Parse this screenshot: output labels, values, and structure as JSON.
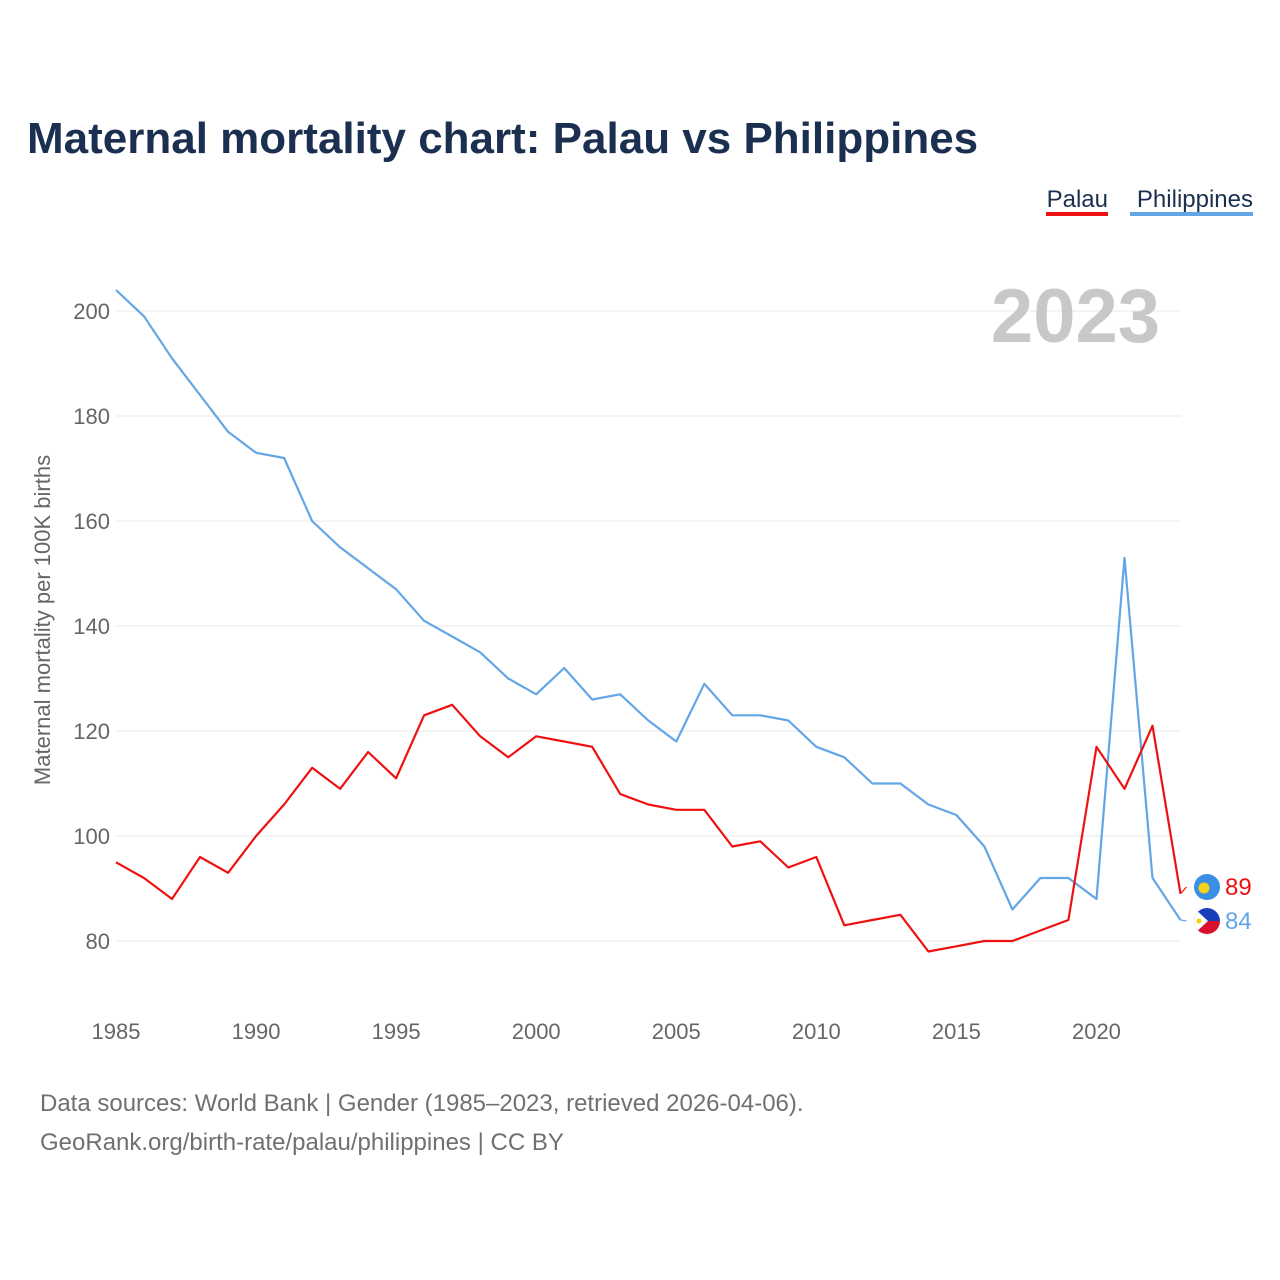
{
  "chart_data": {
    "type": "line",
    "title": "Maternal mortality chart: Palau vs Philippines",
    "ylabel": "Maternal mortality per 100K births",
    "xlabel": "",
    "year_label": "2023",
    "xlim": [
      1985,
      2023
    ],
    "ylim": [
      68,
      208
    ],
    "x_ticks": [
      1985,
      1990,
      1995,
      2000,
      2005,
      2010,
      2015,
      2020
    ],
    "y_ticks": [
      80,
      100,
      120,
      140,
      160,
      180,
      200
    ],
    "grid": true,
    "legend_position": "top-right",
    "x": [
      1985,
      1986,
      1987,
      1988,
      1989,
      1990,
      1991,
      1992,
      1993,
      1994,
      1995,
      1996,
      1997,
      1998,
      1999,
      2000,
      2001,
      2002,
      2003,
      2004,
      2005,
      2006,
      2007,
      2008,
      2009,
      2010,
      2011,
      2012,
      2013,
      2014,
      2015,
      2016,
      2017,
      2018,
      2019,
      2020,
      2021,
      2022,
      2023
    ],
    "series": [
      {
        "name": "Palau",
        "color": "#ee1111",
        "end_label": "89",
        "icon": "palau-flag-icon",
        "values": [
          95,
          92,
          88,
          96,
          93,
          100,
          106,
          113,
          109,
          116,
          111,
          123,
          125,
          119,
          115,
          119,
          118,
          117,
          108,
          106,
          105,
          105,
          98,
          99,
          94,
          96,
          83,
          84,
          85,
          78,
          79,
          80,
          80,
          82,
          84,
          117,
          109,
          121,
          89
        ]
      },
      {
        "name": "Philippines",
        "color": "#62a6e6",
        "end_label": "84",
        "icon": "philippines-flag-icon",
        "values": [
          204,
          199,
          191,
          184,
          177,
          173,
          172,
          160,
          155,
          151,
          147,
          141,
          138,
          135,
          130,
          127,
          132,
          126,
          127,
          122,
          118,
          129,
          123,
          123,
          122,
          117,
          115,
          110,
          110,
          106,
          104,
          98,
          86,
          92,
          92,
          88,
          153,
          92,
          84
        ]
      }
    ]
  },
  "footer": {
    "line1": "Data sources: World Bank | Gender (1985–2023, retrieved 2026-04-06).",
    "line2": "GeoRank.org/birth-rate/palau/philippines | CC BY"
  }
}
